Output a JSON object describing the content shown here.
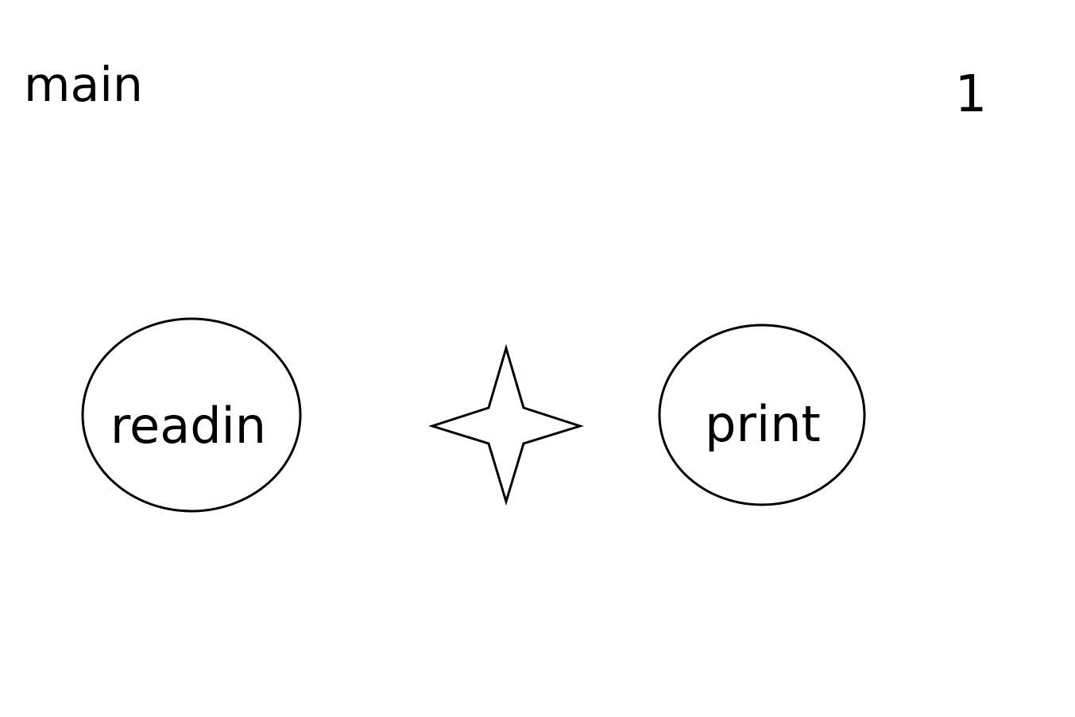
{
  "diagram": {
    "title": "main",
    "page_number": "1",
    "nodes": [
      {
        "id": "readin",
        "label": "readin",
        "shape": "ellipse"
      },
      {
        "id": "combinator",
        "label": "",
        "shape": "four-point-star"
      },
      {
        "id": "print",
        "label": "print",
        "shape": "ellipse"
      }
    ],
    "colors": {
      "stroke": "#000000",
      "fill": "#ffffff",
      "background": "#ffffff",
      "text": "#000000"
    }
  }
}
